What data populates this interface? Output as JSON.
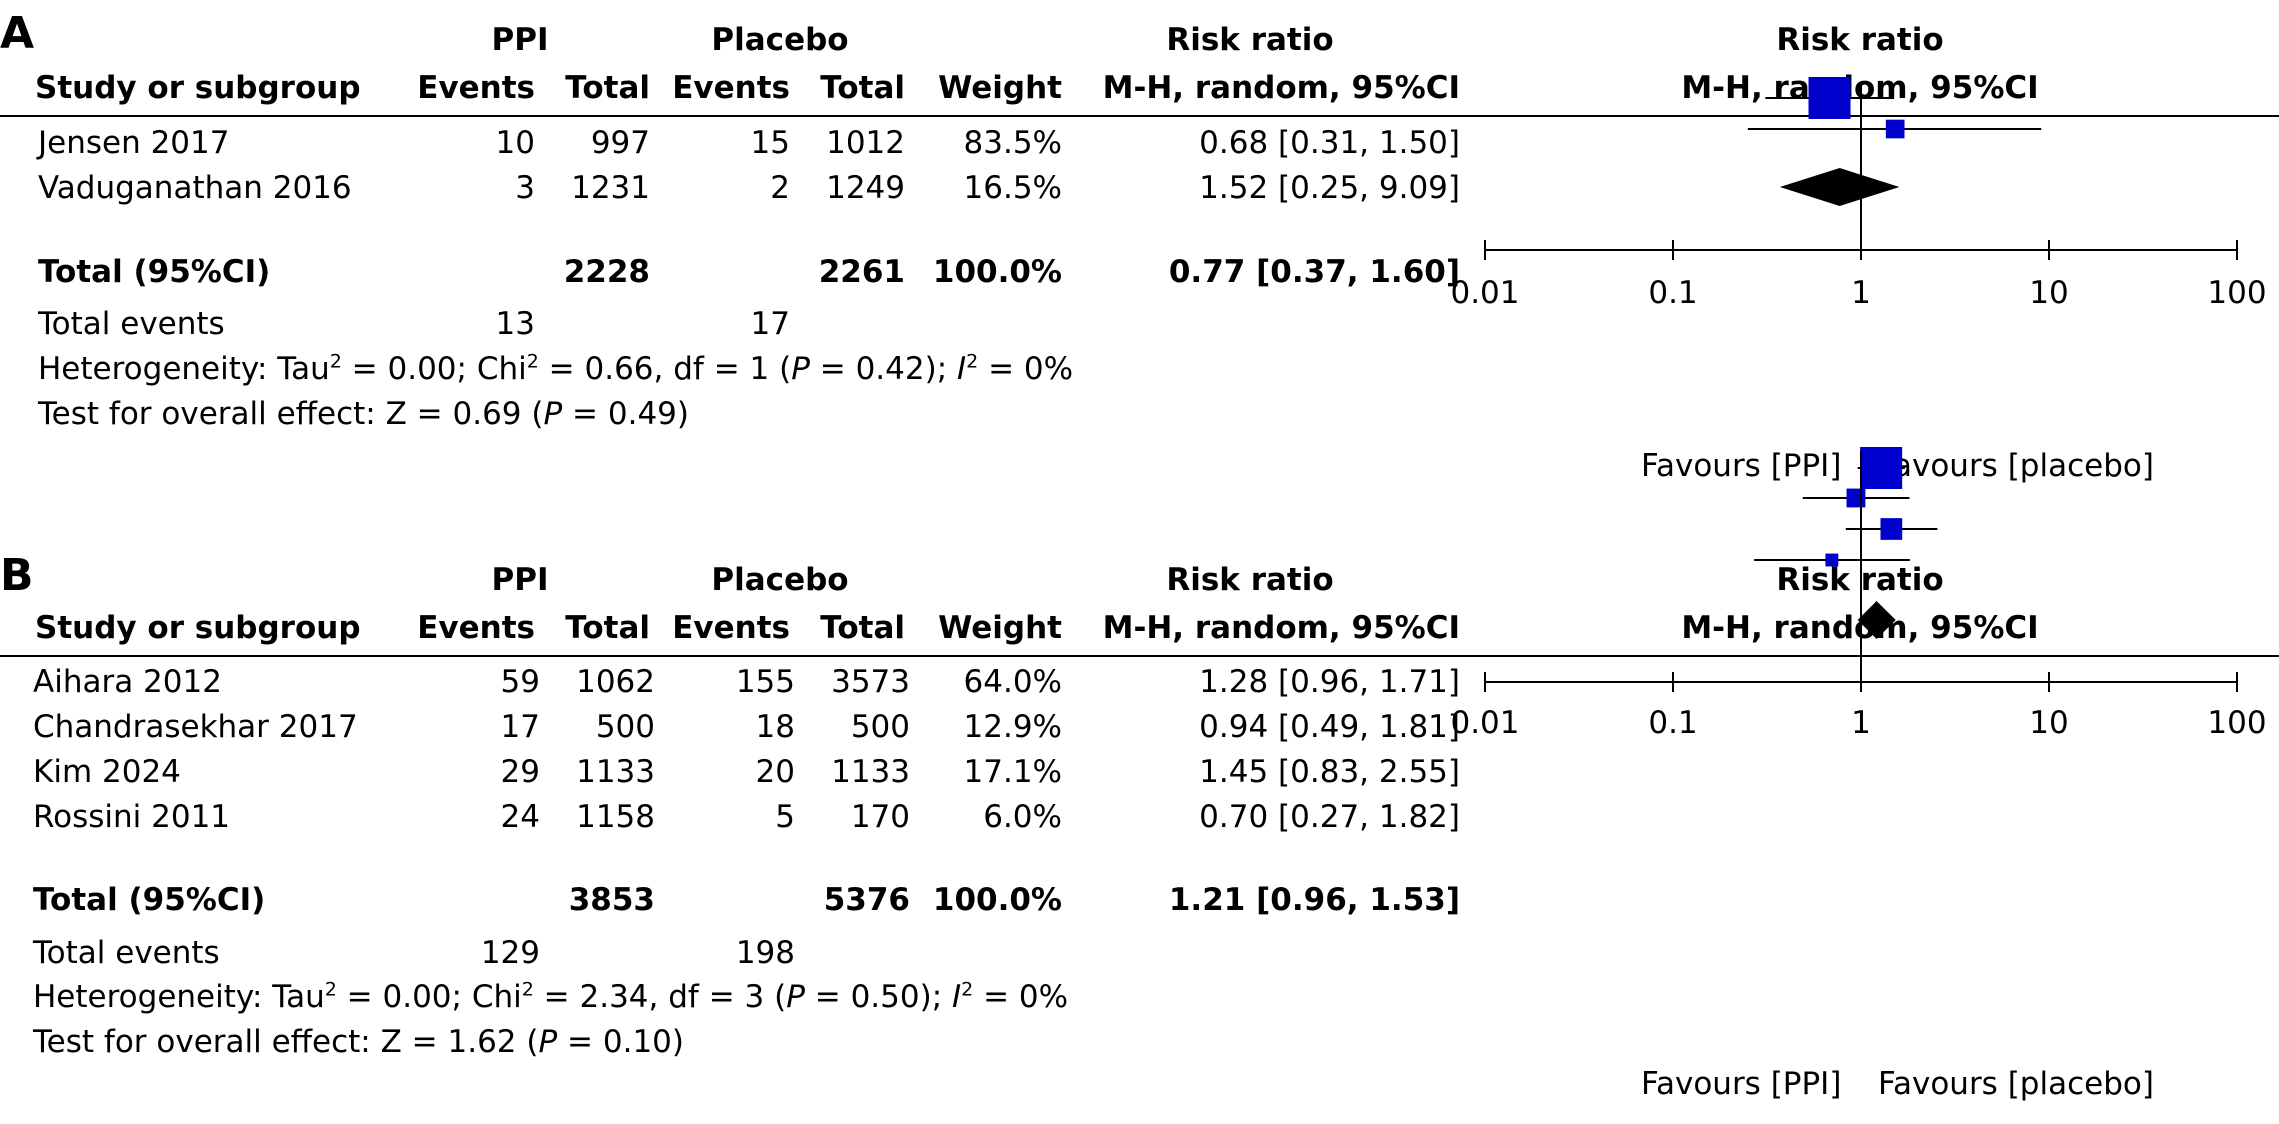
{
  "panels": [
    {
      "letter": "A",
      "col_headers": {
        "study": "Study or subgroup",
        "ppi_group": "PPI",
        "placebo_group": "Placebo",
        "events": "Events",
        "total": "Total",
        "weight": "Weight",
        "rr_title": "Risk ratio",
        "rr_method": "M-H, random, 95%CI",
        "plot_title": "Risk ratio",
        "plot_method": "M-H, random, 95%CI"
      },
      "studies": [
        {
          "name": "Jensen 2017",
          "ppi_events": "10",
          "ppi_total": "997",
          "pl_events": "15",
          "pl_total": "1012",
          "weight": "83.5%",
          "ci_text": "0.68 [0.31, 1.50]"
        },
        {
          "name": "Vaduganathan 2016",
          "ppi_events": "3",
          "ppi_total": "1231",
          "pl_events": "2",
          "pl_total": "1249",
          "weight": "16.5%",
          "ci_text": "1.52 [0.25, 9.09]"
        }
      ],
      "total_row": {
        "label": "Total (95%CI)",
        "ppi_total": "2228",
        "pl_total": "2261",
        "weight": "100.0%",
        "ci_text": "0.77 [0.37, 1.60]"
      },
      "events_row": {
        "label": "Total events",
        "ppi_events": "13",
        "pl_events": "17"
      },
      "heterogeneity": {
        "a": "Heterogeneity: Tau",
        "b": " = 0.00; Chi",
        "c": " = 0.66, df = 1 (",
        "d": " = 0.42); ",
        "e": " = 0%"
      },
      "overall": {
        "a": "Test for overall effect: Z = 0.69 (",
        "b": " = 0.49)"
      },
      "axis": {
        "favours_left": "Favours [PPI]",
        "favours_right": "Favours [placebo]"
      }
    },
    {
      "letter": "B",
      "col_headers": {
        "study": "Study or subgroup",
        "ppi_group": "PPI",
        "placebo_group": "Placebo",
        "events": "Events",
        "total": "Total",
        "weight": "Weight",
        "rr_title": "Risk ratio",
        "rr_method": "M-H, random, 95%CI",
        "plot_title": "Risk ratio",
        "plot_method": "M-H, random, 95%CI"
      },
      "studies": [
        {
          "name": "Aihara 2012",
          "ppi_events": "59",
          "ppi_total": "1062",
          "pl_events": "155",
          "pl_total": "3573",
          "weight": "64.0%",
          "ci_text": "1.28 [0.96, 1.71]"
        },
        {
          "name": "Chandrasekhar 2017",
          "ppi_events": "17",
          "ppi_total": "500",
          "pl_events": "18",
          "pl_total": "500",
          "weight": "12.9%",
          "ci_text": "0.94 [0.49, 1.81]"
        },
        {
          "name": "Kim 2024",
          "ppi_events": "29",
          "ppi_total": "1133",
          "pl_events": "20",
          "pl_total": "1133",
          "weight": "17.1%",
          "ci_text": "1.45 [0.83, 2.55]"
        },
        {
          "name": "Rossini 2011",
          "ppi_events": "24",
          "ppi_total": "1158",
          "pl_events": "5",
          "pl_total": "170",
          "weight": "6.0%",
          "ci_text": "0.70 [0.27, 1.82]"
        }
      ],
      "total_row": {
        "label": "Total (95%CI)",
        "ppi_total": "3853",
        "pl_total": "5376",
        "weight": "100.0%",
        "ci_text": "1.21 [0.96, 1.53]"
      },
      "events_row": {
        "label": "Total events",
        "ppi_events": "129",
        "pl_events": "198"
      },
      "heterogeneity": {
        "a": "Heterogeneity: Tau",
        "b": " = 0.00; Chi",
        "c": " = 2.34, df = 3 (",
        "d": " = 0.50); ",
        "e": " = 0%"
      },
      "overall": {
        "a": "Test for overall effect: Z = 1.62 (",
        "b": " = 0.10)"
      },
      "axis": {
        "favours_left": "Favours [PPI]",
        "favours_right": "Favours [placebo]"
      }
    }
  ],
  "symbols": {
    "p": "P",
    "i": "I",
    "sq": "2"
  },
  "chart_data": [
    {
      "type": "forest",
      "scale": "log",
      "xlim": [
        0.01,
        100
      ],
      "ticks": [
        "0.01",
        "0.1",
        "1",
        "10",
        "100"
      ],
      "tick_values": [
        0.01,
        0.1,
        1,
        10,
        100
      ],
      "square_color": "#0000cc",
      "diamond_color": "#000000",
      "studies": [
        {
          "rr": 0.68,
          "lo": 0.31,
          "hi": 1.5,
          "weight": 83.5
        },
        {
          "rr": 1.52,
          "lo": 0.25,
          "hi": 9.09,
          "weight": 16.5
        }
      ],
      "pooled": {
        "rr": 0.77,
        "lo": 0.37,
        "hi": 1.6
      }
    },
    {
      "type": "forest",
      "scale": "log",
      "xlim": [
        0.01,
        100
      ],
      "ticks": [
        "0.01",
        "0.1",
        "1",
        "10",
        "100"
      ],
      "tick_values": [
        0.01,
        0.1,
        1,
        10,
        100
      ],
      "square_color": "#0000cc",
      "diamond_color": "#000000",
      "studies": [
        {
          "rr": 1.28,
          "lo": 0.96,
          "hi": 1.71,
          "weight": 64.0
        },
        {
          "rr": 0.94,
          "lo": 0.49,
          "hi": 1.81,
          "weight": 12.9
        },
        {
          "rr": 1.45,
          "lo": 0.83,
          "hi": 2.55,
          "weight": 17.1
        },
        {
          "rr": 0.7,
          "lo": 0.27,
          "hi": 1.82,
          "weight": 6.0
        }
      ],
      "pooled": {
        "rr": 1.21,
        "lo": 0.96,
        "hi": 1.53
      }
    }
  ]
}
